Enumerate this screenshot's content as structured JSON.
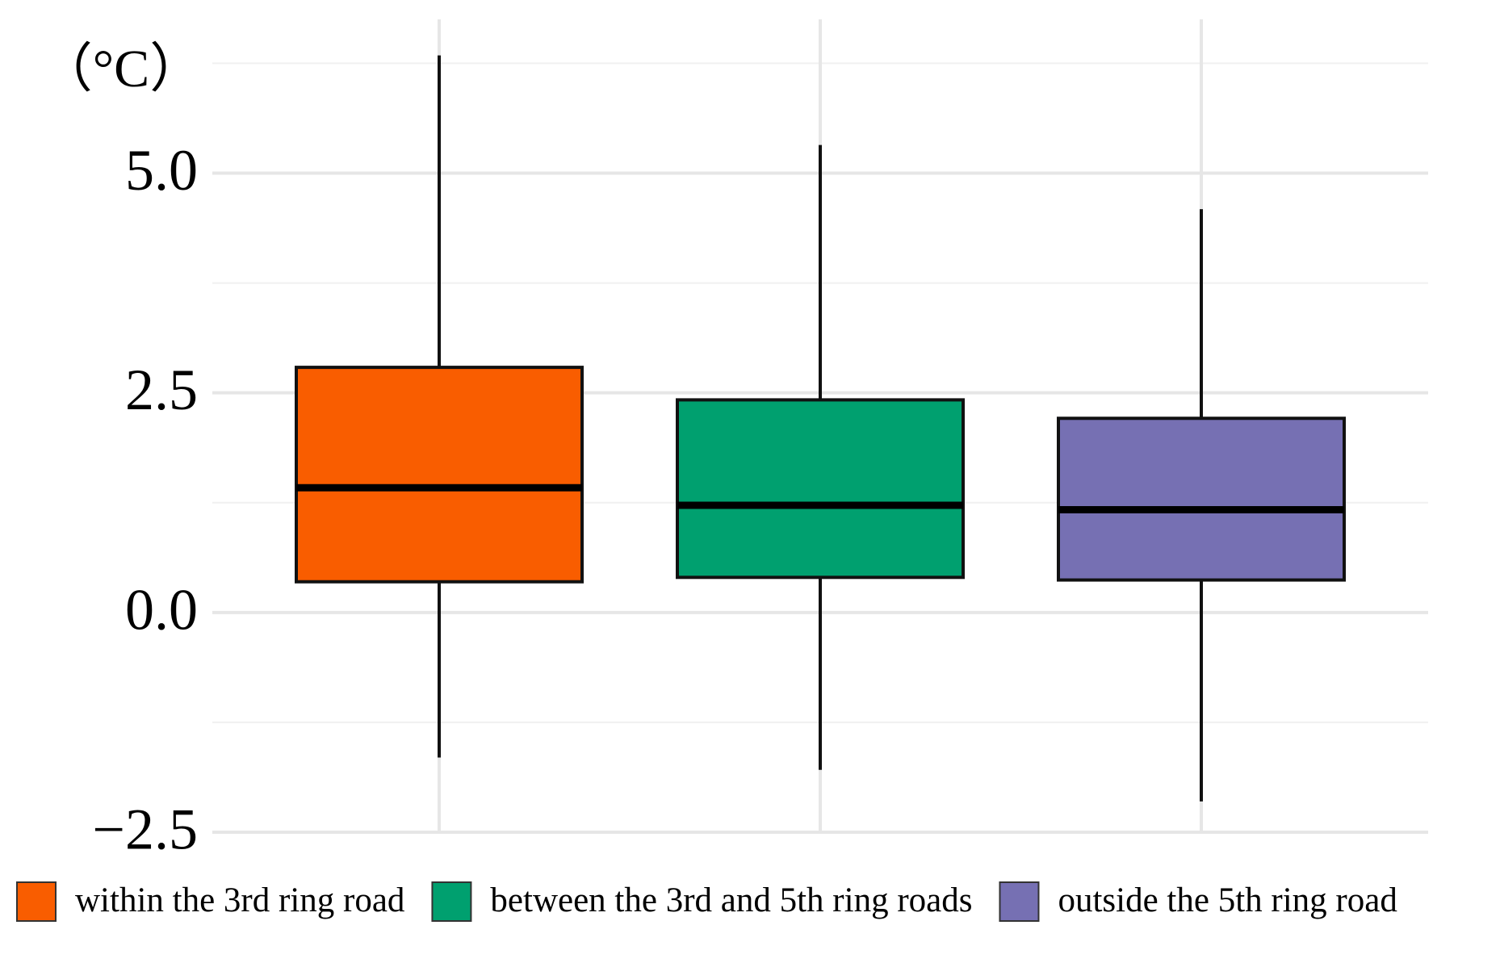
{
  "chart_data": {
    "type": "box",
    "y_unit_label": "（°C）",
    "ylim": [
      -2.5,
      6.75
    ],
    "yticks": [
      {
        "value": 5,
        "label": "5.0"
      },
      {
        "value": 2.5,
        "label": "2.5"
      },
      {
        "value": 0,
        "label": "0.0"
      },
      {
        "value": -2.5,
        "label": "−2.5"
      }
    ],
    "minor_yticks": [
      6.25,
      3.75,
      1.25,
      -1.25
    ],
    "grid": true,
    "legend": "bottom",
    "series": [
      {
        "name": "within the 3rd ring road",
        "color": "#f95d00",
        "min": -1.65,
        "q1": 0.35,
        "median": 1.42,
        "q3": 2.79,
        "max": 6.34
      },
      {
        "name": "between the 3rd and 5th ring roads",
        "color": "#00a06f",
        "min": -1.79,
        "q1": 0.4,
        "median": 1.22,
        "q3": 2.42,
        "max": 5.32
      },
      {
        "name": "outside the 5th ring road",
        "color": "#7670b3",
        "min": -2.15,
        "q1": 0.37,
        "median": 1.17,
        "q3": 2.21,
        "max": 4.59
      }
    ]
  }
}
